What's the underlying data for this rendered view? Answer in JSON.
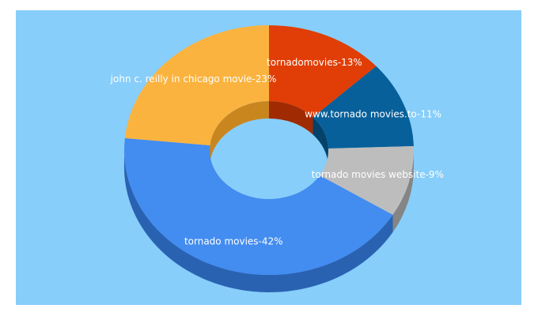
{
  "colors": {
    "panel_bg": "#87CEFA",
    "label_text": "#ffffff"
  },
  "chart_data": {
    "type": "pie",
    "variant": "3d-donut",
    "title": "",
    "legend": "none",
    "slices": [
      {
        "label": "tornadomovies",
        "value": 13,
        "display": "tornadomovies-13%",
        "color": "#E03E06",
        "side": "#A02A02"
      },
      {
        "label": "www.tornado movies.to",
        "value": 11,
        "display": "www.tornado movies.to-11%",
        "color": "#07609A",
        "side": "#04426A"
      },
      {
        "label": "tornado movies website",
        "value": 9,
        "display": "tornado movies website-9%",
        "color": "#BDBDBD",
        "side": "#858585"
      },
      {
        "label": "tornado movies",
        "value": 42,
        "display": "tornado movies-42%",
        "color": "#438CF0",
        "side": "#2A62B2"
      },
      {
        "label": "john c. reilly in chicago movie",
        "value": 23,
        "display": "john c. reilly in chicago movie-23%",
        "color": "#FBB33F",
        "side": "#C9861F"
      }
    ]
  }
}
